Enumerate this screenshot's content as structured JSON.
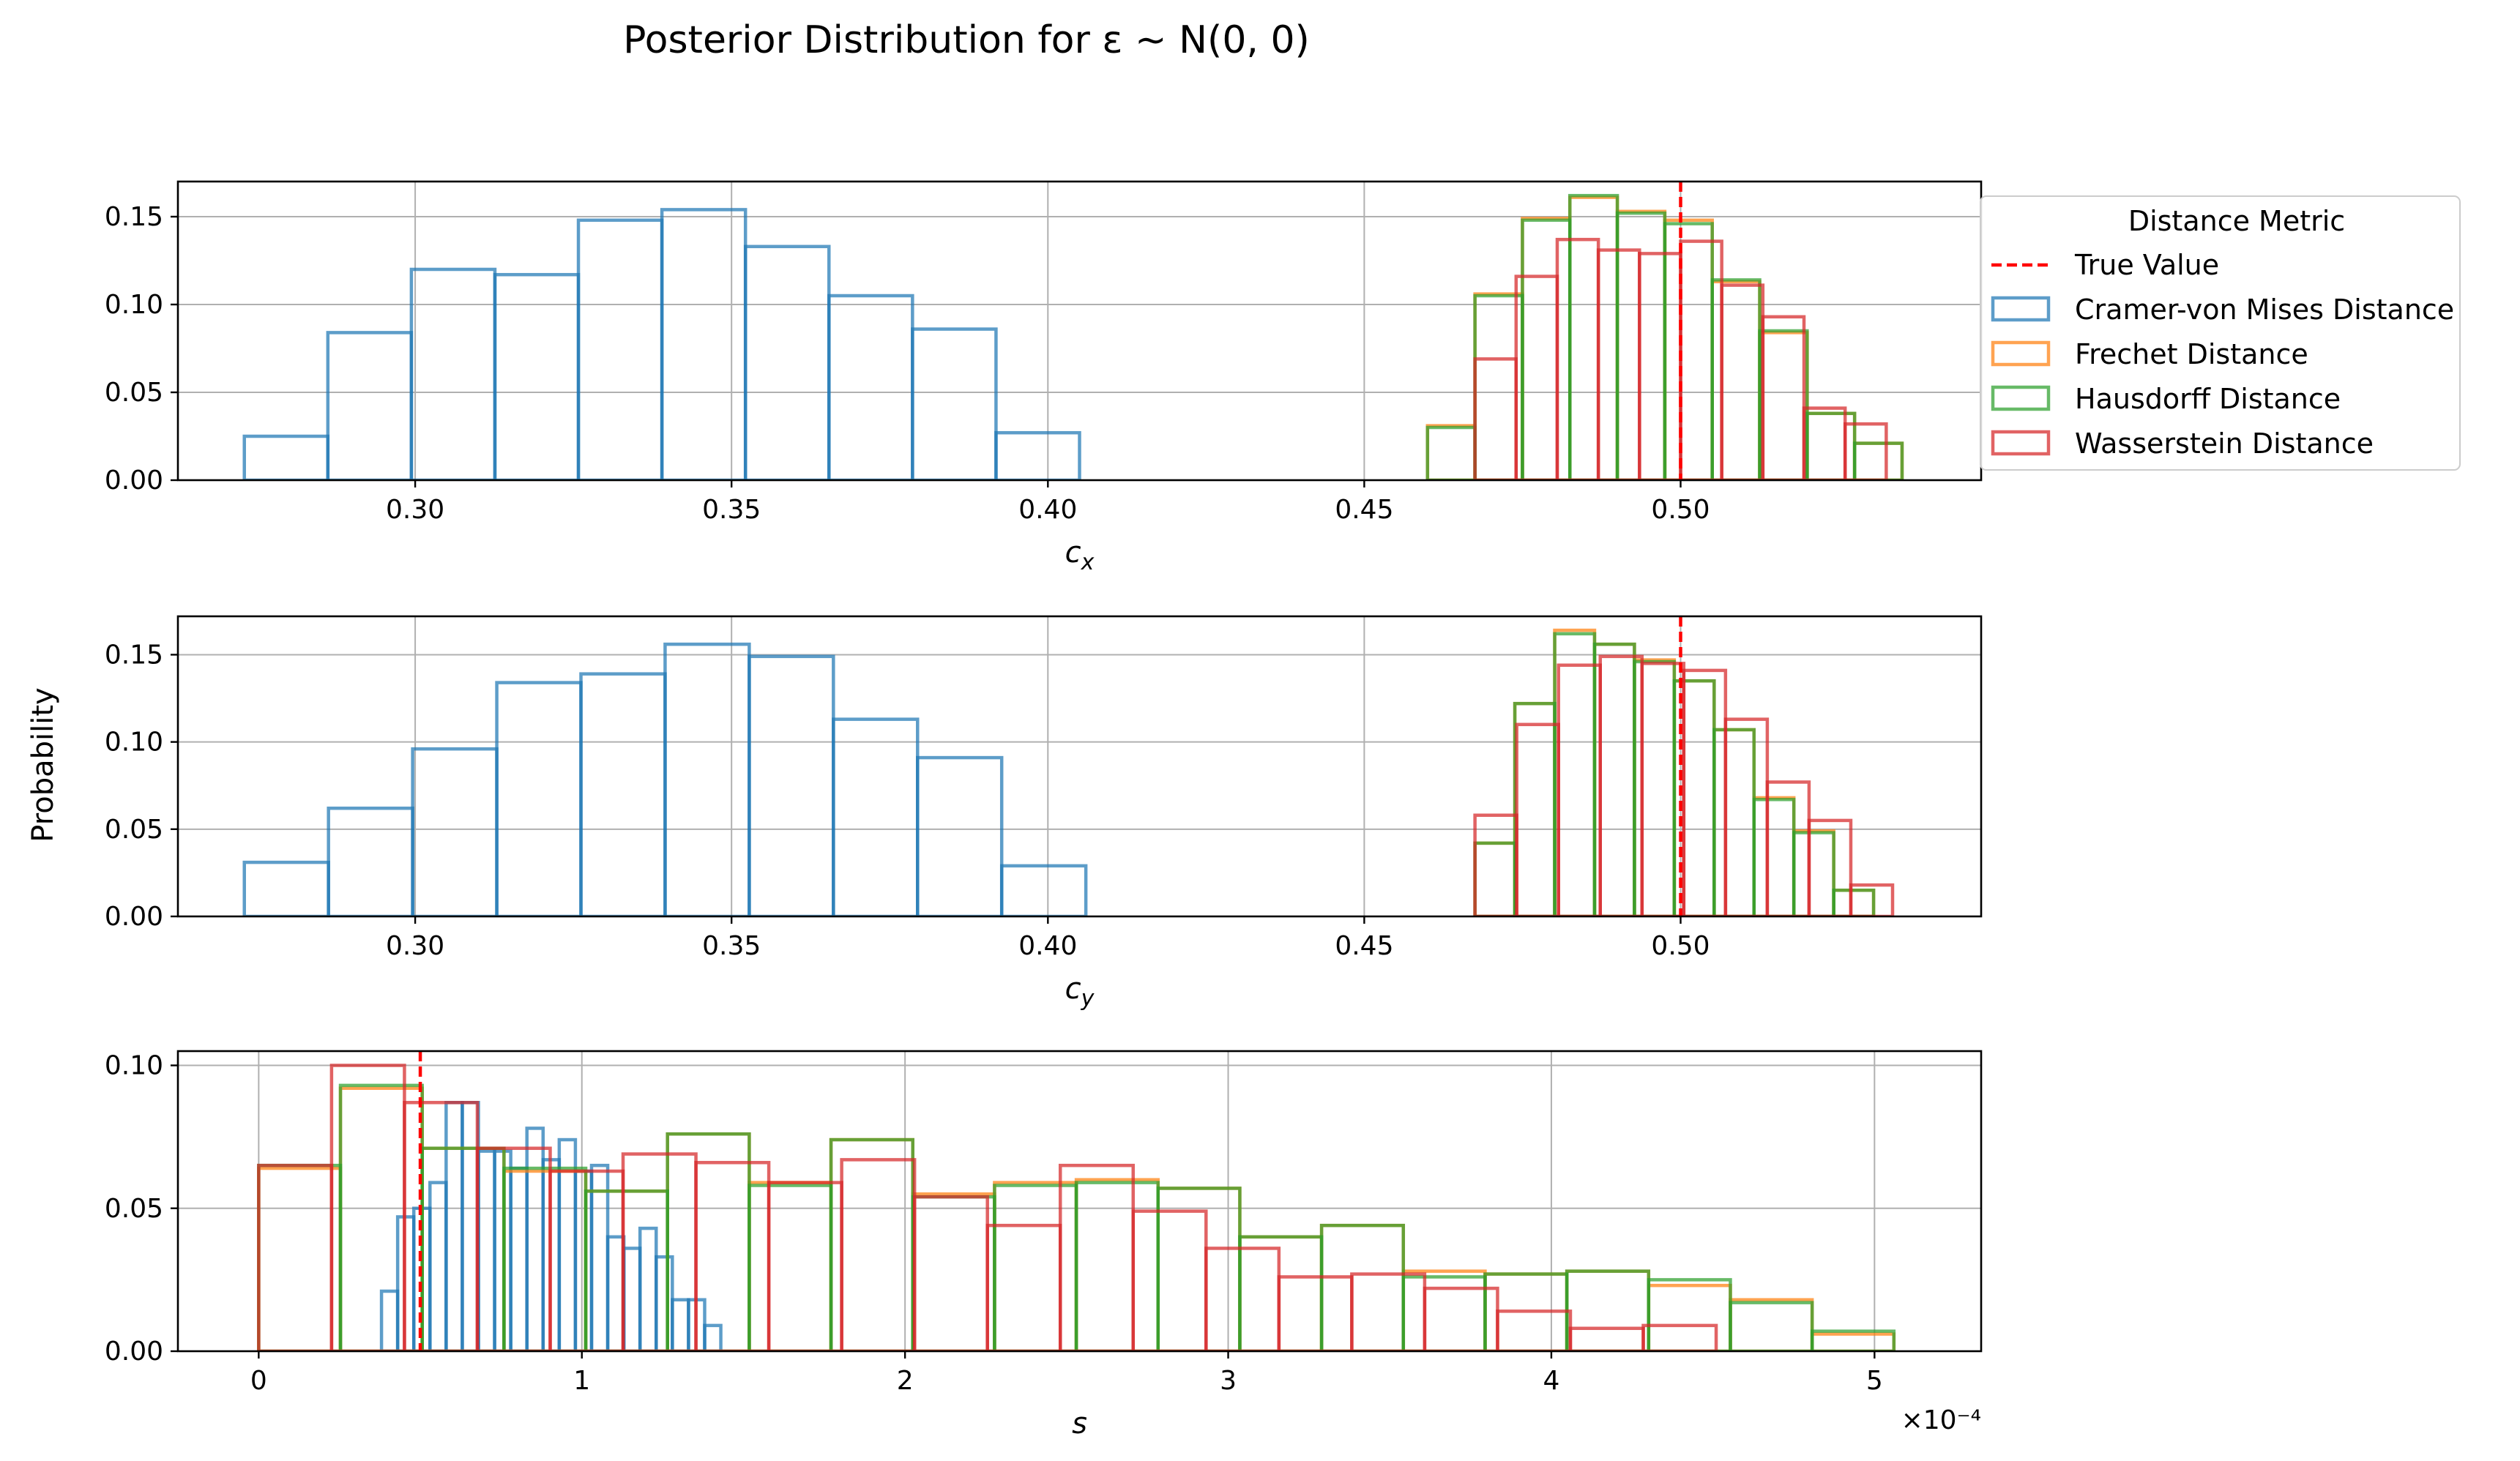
{
  "figure": {
    "title": "Posterior Distribution for ε ~ N(0, 0)",
    "ylabel": "Probability"
  },
  "legend": {
    "title": "Distance Metric",
    "entries": [
      {
        "label": "True Value",
        "color": "#ff0000",
        "style": "dashed"
      },
      {
        "label": "Cramer-von Mises Distance",
        "color": "#1f77b4",
        "style": "box"
      },
      {
        "label": "Frechet Distance",
        "color": "#ff7f0e",
        "style": "box"
      },
      {
        "label": "Hausdorff Distance",
        "color": "#2ca02c",
        "style": "box"
      },
      {
        "label": "Wasserstein Distance",
        "color": "#d62728",
        "style": "box"
      }
    ]
  },
  "chart_data": [
    {
      "type": "histogram",
      "xlabel": "c_x",
      "ylabel": "Probability",
      "xlim": [
        0.2625,
        0.5475
      ],
      "ylim": [
        0,
        0.17
      ],
      "xticks": [
        0.3,
        0.35,
        0.4,
        0.45,
        0.5
      ],
      "xtick_labels": [
        "0.30",
        "0.35",
        "0.40",
        "0.45",
        "0.50"
      ],
      "yticks": [
        0,
        0.05,
        0.1,
        0.15
      ],
      "ytick_labels": [
        "0.00",
        "0.05",
        "0.10",
        "0.15"
      ],
      "grid": true,
      "true_value": 0.5,
      "series": [
        {
          "name": "Cramer-von Mises Distance",
          "color": "#1f77b4",
          "bin_edges": [
            0.273,
            0.2862,
            0.2994,
            0.3126,
            0.3258,
            0.339,
            0.3522,
            0.3654,
            0.3786,
            0.3918,
            0.405
          ],
          "values": [
            0.025,
            0.084,
            0.12,
            0.117,
            0.148,
            0.154,
            0.133,
            0.105,
            0.086,
            0.027
          ]
        },
        {
          "name": "Frechet Distance",
          "color": "#ff7f0e",
          "bin_edges": [
            0.46,
            0.4675,
            0.475,
            0.4825,
            0.49,
            0.4975,
            0.505,
            0.5125,
            0.52,
            0.5275,
            0.535
          ],
          "values": [
            0.031,
            0.106,
            0.149,
            0.161,
            0.153,
            0.148,
            0.113,
            0.084,
            0.038,
            0.021
          ]
        },
        {
          "name": "Hausdorff Distance",
          "color": "#2ca02c",
          "bin_edges": [
            0.46,
            0.4675,
            0.475,
            0.4825,
            0.49,
            0.4975,
            0.505,
            0.5125,
            0.52,
            0.5275,
            0.535
          ],
          "values": [
            0.03,
            0.105,
            0.148,
            0.162,
            0.152,
            0.146,
            0.114,
            0.085,
            0.038,
            0.021
          ]
        },
        {
          "name": "Wasserstein Distance",
          "color": "#d62728",
          "bin_edges": [
            0.4675,
            0.474,
            0.4805,
            0.487,
            0.4935,
            0.5,
            0.5065,
            0.513,
            0.5195,
            0.526,
            0.5325
          ],
          "values": [
            0.069,
            0.116,
            0.137,
            0.131,
            0.129,
            0.136,
            0.111,
            0.093,
            0.041,
            0.032
          ]
        }
      ]
    },
    {
      "type": "histogram",
      "xlabel": "c_y",
      "ylabel": "Probability",
      "xlim": [
        0.2625,
        0.5475
      ],
      "ylim": [
        0,
        0.172
      ],
      "xticks": [
        0.3,
        0.35,
        0.4,
        0.45,
        0.5
      ],
      "xtick_labels": [
        "0.30",
        "0.35",
        "0.40",
        "0.45",
        "0.50"
      ],
      "yticks": [
        0,
        0.05,
        0.1,
        0.15
      ],
      "ytick_labels": [
        "0.00",
        "0.05",
        "0.10",
        "0.15"
      ],
      "grid": true,
      "true_value": 0.5,
      "series": [
        {
          "name": "Cramer-von Mises Distance",
          "color": "#1f77b4",
          "bin_edges": [
            0.273,
            0.2863,
            0.2996,
            0.3129,
            0.3262,
            0.3395,
            0.3528,
            0.3661,
            0.3794,
            0.3927,
            0.406
          ],
          "values": [
            0.031,
            0.062,
            0.096,
            0.134,
            0.139,
            0.156,
            0.149,
            0.113,
            0.091,
            0.029
          ]
        },
        {
          "name": "Frechet Distance",
          "color": "#ff7f0e",
          "bin_edges": [
            0.4675,
            0.4738,
            0.4801,
            0.4864,
            0.4927,
            0.499,
            0.5053,
            0.5116,
            0.5179,
            0.5242,
            0.5305
          ],
          "values": [
            0.042,
            0.122,
            0.164,
            0.156,
            0.147,
            0.135,
            0.107,
            0.068,
            0.049,
            0.015
          ]
        },
        {
          "name": "Hausdorff Distance",
          "color": "#2ca02c",
          "bin_edges": [
            0.4675,
            0.4738,
            0.4801,
            0.4864,
            0.4927,
            0.499,
            0.5053,
            0.5116,
            0.5179,
            0.5242,
            0.5305
          ],
          "values": [
            0.042,
            0.122,
            0.162,
            0.156,
            0.146,
            0.135,
            0.107,
            0.067,
            0.048,
            0.015
          ]
        },
        {
          "name": "Wasserstein Distance",
          "color": "#d62728",
          "bin_edges": [
            0.4675,
            0.4741,
            0.4807,
            0.4873,
            0.4939,
            0.5005,
            0.5071,
            0.5137,
            0.5203,
            0.5269,
            0.5335
          ],
          "values": [
            0.058,
            0.11,
            0.144,
            0.149,
            0.145,
            0.141,
            0.113,
            0.077,
            0.055,
            0.018
          ]
        }
      ]
    },
    {
      "type": "histogram",
      "xlabel": "s",
      "ylabel": "Probability",
      "x_scale_label": "×10⁻⁴",
      "xlim": [
        -0.25,
        5.33
      ],
      "ylim": [
        0,
        0.105
      ],
      "xticks": [
        0,
        1,
        2,
        3,
        4,
        5
      ],
      "xtick_labels": [
        "0",
        "1",
        "2",
        "3",
        "4",
        "5"
      ],
      "yticks": [
        0,
        0.05,
        0.1
      ],
      "ytick_labels": [
        "0.00",
        "0.05",
        "0.10"
      ],
      "grid": true,
      "true_value": 0.5,
      "series": [
        {
          "name": "Cramer-von Mises Distance",
          "color": "#1f77b4",
          "bin_edges": [
            0.38,
            0.43,
            0.48,
            0.53,
            0.58,
            0.63,
            0.68,
            0.73,
            0.78,
            0.83,
            0.88,
            0.93,
            0.98,
            1.03,
            1.08,
            1.13,
            1.18,
            1.23,
            1.28,
            1.33,
            1.38,
            1.43
          ],
          "values": [
            0.021,
            0.047,
            0.05,
            0.059,
            0.087,
            0.087,
            0.07,
            0.07,
            0.064,
            0.078,
            0.067,
            0.074,
            0.063,
            0.065,
            0.04,
            0.036,
            0.043,
            0.033,
            0.018,
            0.018,
            0.009
          ]
        },
        {
          "name": "Frechet Distance",
          "color": "#ff7f0e",
          "bin_edges": [
            0,
            0.253,
            0.506,
            0.759,
            1.012,
            1.265,
            1.518,
            1.771,
            2.024,
            2.277,
            2.53,
            2.783,
            3.036,
            3.289,
            3.542,
            3.795,
            4.048,
            4.301,
            4.554,
            4.807,
            5.06
          ],
          "values": [
            0.064,
            0.092,
            0.071,
            0.063,
            0.056,
            0.076,
            0.059,
            0.074,
            0.055,
            0.059,
            0.06,
            0.057,
            0.04,
            0.044,
            0.028,
            0.027,
            0.028,
            0.023,
            0.018,
            0.006
          ]
        },
        {
          "name": "Hausdorff Distance",
          "color": "#2ca02c",
          "bin_edges": [
            0,
            0.253,
            0.506,
            0.759,
            1.012,
            1.265,
            1.518,
            1.771,
            2.024,
            2.277,
            2.53,
            2.783,
            3.036,
            3.289,
            3.542,
            3.795,
            4.048,
            4.301,
            4.554,
            4.807,
            5.06
          ],
          "values": [
            0.065,
            0.093,
            0.071,
            0.064,
            0.056,
            0.076,
            0.058,
            0.074,
            0.054,
            0.058,
            0.059,
            0.057,
            0.04,
            0.044,
            0.026,
            0.027,
            0.028,
            0.025,
            0.017,
            0.007
          ]
        },
        {
          "name": "Wasserstein Distance",
          "color": "#d62728",
          "bin_edges": [
            0,
            0.2255,
            0.451,
            0.6765,
            0.902,
            1.1275,
            1.353,
            1.5785,
            1.804,
            2.0295,
            2.255,
            2.4805,
            2.706,
            2.9315,
            3.157,
            3.3825,
            3.608,
            3.8335,
            4.059,
            4.2845,
            4.51
          ],
          "values": [
            0.065,
            0.1,
            0.087,
            0.071,
            0.063,
            0.069,
            0.066,
            0.059,
            0.067,
            0.054,
            0.044,
            0.065,
            0.049,
            0.036,
            0.026,
            0.027,
            0.022,
            0.014,
            0.008,
            0.009
          ]
        }
      ]
    }
  ]
}
